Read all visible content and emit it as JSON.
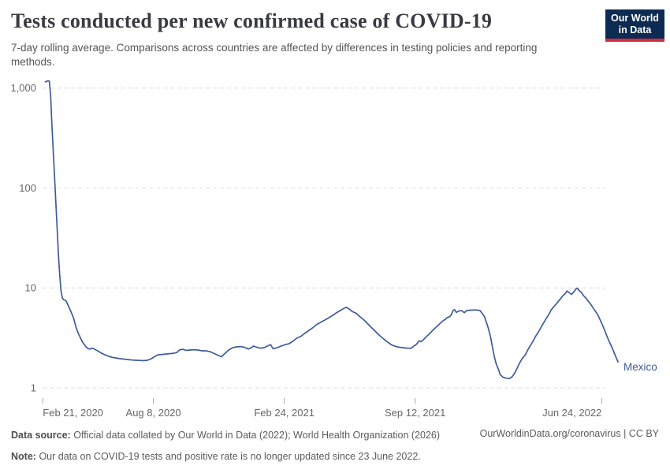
{
  "header": {
    "title": "Tests conducted per new confirmed case of COVID-19",
    "subtitle": "7-day rolling average. Comparisons across countries are affected by differences in testing policies and reporting methods.",
    "logo_line1": "Our World",
    "logo_line2": "in Data"
  },
  "footer": {
    "source_label": "Data source:",
    "source_text": "Official data collated by Our World in Data (2022); World Health Organization (2026)",
    "note_label": "Note:",
    "note_text": "Our data on COVID-19 tests and positive rate is no longer updated since 23 June 2022.",
    "link": "OurWorldinData.org/coronavirus | CC BY"
  },
  "chart_data": {
    "type": "line",
    "title": "Tests conducted per new confirmed case of COVID-19",
    "subtitle": "7-day rolling average",
    "yscale": "log",
    "ylim": [
      1,
      1300
    ],
    "grid": "dashed-horizontal",
    "legend_position": "end-of-line-label",
    "yticks": [
      {
        "label": "1",
        "value": 1
      },
      {
        "label": "10",
        "value": 10
      },
      {
        "label": "100",
        "value": 100
      },
      {
        "label": "1,000",
        "value": 1000
      }
    ],
    "xticks": [
      {
        "label": "Feb 21, 2020",
        "day": 0
      },
      {
        "label": "Aug 8, 2020",
        "day": 169
      },
      {
        "label": "Feb 24, 2021",
        "day": 369
      },
      {
        "label": "Sep 12, 2021",
        "day": 569
      },
      {
        "label": "Jun 24, 2022",
        "day": 854
      }
    ],
    "x_unit": "days since 2020-02-21",
    "series": [
      {
        "name": "Mexico",
        "color": "#3e5c9a",
        "points": [
          [
            4,
            1150
          ],
          [
            7,
            1180
          ],
          [
            10,
            1175
          ],
          [
            12,
            820
          ],
          [
            14,
            420
          ],
          [
            16,
            230
          ],
          [
            18,
            130
          ],
          [
            20,
            70
          ],
          [
            22,
            38
          ],
          [
            24,
            21
          ],
          [
            26,
            13
          ],
          [
            28,
            9.2
          ],
          [
            30,
            7.9
          ],
          [
            32,
            7.6
          ],
          [
            35,
            7.5
          ],
          [
            37,
            7.1
          ],
          [
            41,
            6.2
          ],
          [
            44,
            5.6
          ],
          [
            47,
            5.0
          ],
          [
            51,
            4.0
          ],
          [
            54,
            3.55
          ],
          [
            58,
            3.1
          ],
          [
            61,
            2.85
          ],
          [
            65,
            2.62
          ],
          [
            68,
            2.5
          ],
          [
            72,
            2.44
          ],
          [
            75,
            2.5
          ],
          [
            78,
            2.46
          ],
          [
            82,
            2.38
          ],
          [
            86,
            2.3
          ],
          [
            90,
            2.22
          ],
          [
            95,
            2.14
          ],
          [
            100,
            2.08
          ],
          [
            106,
            2.02
          ],
          [
            112,
            1.99
          ],
          [
            118,
            1.96
          ],
          [
            124,
            1.94
          ],
          [
            130,
            1.92
          ],
          [
            136,
            1.9
          ],
          [
            142,
            1.89
          ],
          [
            148,
            1.88
          ],
          [
            154,
            1.87
          ],
          [
            160,
            1.89
          ],
          [
            166,
            1.96
          ],
          [
            171,
            2.06
          ],
          [
            176,
            2.14
          ],
          [
            182,
            2.16
          ],
          [
            188,
            2.18
          ],
          [
            194,
            2.2
          ],
          [
            200,
            2.22
          ],
          [
            205,
            2.26
          ],
          [
            209,
            2.4
          ],
          [
            214,
            2.43
          ],
          [
            219,
            2.37
          ],
          [
            225,
            2.39
          ],
          [
            231,
            2.41
          ],
          [
            237,
            2.39
          ],
          [
            243,
            2.35
          ],
          [
            249,
            2.35
          ],
          [
            255,
            2.31
          ],
          [
            261,
            2.22
          ],
          [
            267,
            2.13
          ],
          [
            273,
            2.05
          ],
          [
            278,
            2.2
          ],
          [
            284,
            2.39
          ],
          [
            290,
            2.52
          ],
          [
            296,
            2.57
          ],
          [
            302,
            2.59
          ],
          [
            308,
            2.55
          ],
          [
            314,
            2.45
          ],
          [
            318,
            2.51
          ],
          [
            322,
            2.62
          ],
          [
            327,
            2.55
          ],
          [
            332,
            2.5
          ],
          [
            338,
            2.52
          ],
          [
            344,
            2.64
          ],
          [
            348,
            2.71
          ],
          [
            352,
            2.46
          ],
          [
            358,
            2.52
          ],
          [
            364,
            2.62
          ],
          [
            371,
            2.71
          ],
          [
            376,
            2.76
          ],
          [
            382,
            2.92
          ],
          [
            388,
            3.14
          ],
          [
            394,
            3.26
          ],
          [
            400,
            3.5
          ],
          [
            406,
            3.73
          ],
          [
            412,
            3.97
          ],
          [
            418,
            4.28
          ],
          [
            425,
            4.55
          ],
          [
            431,
            4.77
          ],
          [
            437,
            5.03
          ],
          [
            443,
            5.32
          ],
          [
            449,
            5.66
          ],
          [
            455,
            5.95
          ],
          [
            461,
            6.28
          ],
          [
            464,
            6.4
          ],
          [
            468,
            6.17
          ],
          [
            473,
            5.8
          ],
          [
            479,
            5.56
          ],
          [
            485,
            5.12
          ],
          [
            491,
            4.77
          ],
          [
            497,
            4.35
          ],
          [
            503,
            3.97
          ],
          [
            509,
            3.63
          ],
          [
            515,
            3.32
          ],
          [
            521,
            3.08
          ],
          [
            527,
            2.87
          ],
          [
            533,
            2.69
          ],
          [
            539,
            2.6
          ],
          [
            545,
            2.55
          ],
          [
            551,
            2.52
          ],
          [
            557,
            2.5
          ],
          [
            563,
            2.49
          ],
          [
            567,
            2.62
          ],
          [
            571,
            2.73
          ],
          [
            575,
            2.95
          ],
          [
            578,
            2.9
          ],
          [
            582,
            3.05
          ],
          [
            586,
            3.25
          ],
          [
            591,
            3.48
          ],
          [
            596,
            3.77
          ],
          [
            601,
            4.05
          ],
          [
            606,
            4.35
          ],
          [
            611,
            4.66
          ],
          [
            615,
            4.85
          ],
          [
            618,
            5.05
          ],
          [
            621,
            5.12
          ],
          [
            624,
            5.38
          ],
          [
            627,
            5.94
          ],
          [
            629,
            6.07
          ],
          [
            632,
            5.7
          ],
          [
            636,
            5.88
          ],
          [
            640,
            5.94
          ],
          [
            644,
            5.65
          ],
          [
            648,
            5.94
          ],
          [
            653,
            5.98
          ],
          [
            659,
            6.02
          ],
          [
            664,
            6.0
          ],
          [
            668,
            5.95
          ],
          [
            672,
            5.5
          ],
          [
            675,
            5.15
          ],
          [
            678,
            4.5
          ],
          [
            681,
            3.9
          ],
          [
            684,
            3.27
          ],
          [
            687,
            2.57
          ],
          [
            690,
            2.05
          ],
          [
            693,
            1.73
          ],
          [
            696,
            1.55
          ],
          [
            699,
            1.36
          ],
          [
            703,
            1.28
          ],
          [
            708,
            1.25
          ],
          [
            713,
            1.24
          ],
          [
            717,
            1.29
          ],
          [
            721,
            1.4
          ],
          [
            725,
            1.58
          ],
          [
            729,
            1.79
          ],
          [
            733,
            1.98
          ],
          [
            737,
            2.12
          ],
          [
            741,
            2.39
          ],
          [
            745,
            2.64
          ],
          [
            749,
            2.92
          ],
          [
            753,
            3.27
          ],
          [
            757,
            3.6
          ],
          [
            761,
            4.0
          ],
          [
            765,
            4.43
          ],
          [
            769,
            4.9
          ],
          [
            773,
            5.4
          ],
          [
            777,
            6.05
          ],
          [
            781,
            6.5
          ],
          [
            785,
            6.95
          ],
          [
            789,
            7.5
          ],
          [
            792,
            7.9
          ],
          [
            795,
            8.4
          ],
          [
            798,
            8.7
          ],
          [
            801,
            9.3
          ],
          [
            804,
            9.0
          ],
          [
            808,
            8.6
          ],
          [
            812,
            9.2
          ],
          [
            815,
            9.8
          ],
          [
            817,
            9.95
          ],
          [
            819,
            9.5
          ],
          [
            823,
            9.0
          ],
          [
            826,
            8.4
          ],
          [
            830,
            7.9
          ],
          [
            834,
            7.3
          ],
          [
            837,
            6.9
          ],
          [
            841,
            6.3
          ],
          [
            844,
            5.9
          ],
          [
            848,
            5.4
          ],
          [
            851,
            4.9
          ],
          [
            855,
            4.3
          ],
          [
            858,
            3.85
          ],
          [
            862,
            3.3
          ],
          [
            866,
            2.85
          ],
          [
            869,
            2.6
          ],
          [
            872,
            2.35
          ],
          [
            875,
            2.1
          ],
          [
            877,
            1.95
          ],
          [
            879,
            1.82
          ]
        ]
      }
    ]
  },
  "colors": {
    "line": "#3e5c9a",
    "logo_navy": "#0d2b52",
    "logo_red": "#cf2e3e",
    "grid": "#dcdcdc",
    "axis_text": "#666666",
    "title_text": "#3a3a43",
    "subtitle_text": "#555555",
    "footer_text": "#5b5b5b"
  }
}
